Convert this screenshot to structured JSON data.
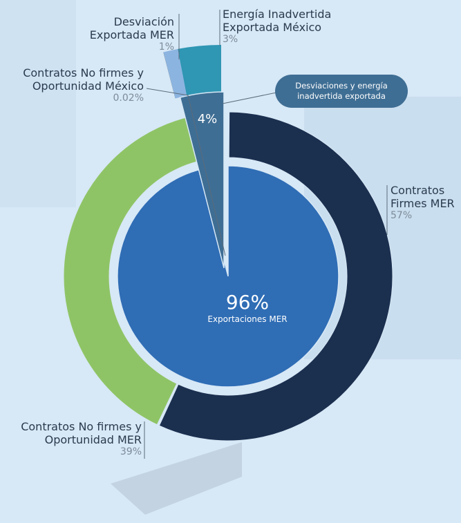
{
  "chart_data": {
    "type": "pie",
    "inner": {
      "labels": [
        "Exportaciones MER",
        "Desviaciones y energía inadvertida exportada"
      ],
      "values": [
        96,
        4
      ],
      "value_labels": [
        "96%",
        "4%"
      ],
      "colors": [
        "#2f6db5",
        "#3f6e94"
      ]
    },
    "outer": {
      "labels": [
        "Contratos Firmes MER",
        "Contratos No firmes y Oportunidad MER",
        "Contratos No firmes y Oportunidad México",
        "Desviación Exportada MER",
        "Energía Inadvertida Exportada México"
      ],
      "values": [
        57,
        39,
        0.02,
        1,
        3
      ],
      "value_labels": [
        "57%",
        "39%",
        "0.02%",
        "1%",
        "3%"
      ],
      "colors": [
        "#1b2f4f",
        "#8fc466",
        "#5d7f9c",
        "#8cb4e0",
        "#2f96b4"
      ]
    }
  }
}
